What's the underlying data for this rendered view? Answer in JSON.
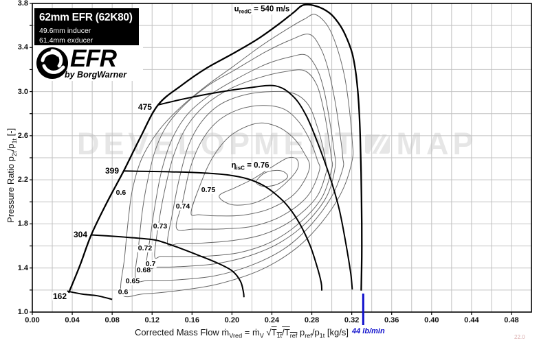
{
  "title_block": {
    "title": "62mm EFR  (62K80)",
    "line1": "49.6mm inducer",
    "line2": "61.4mm exducer"
  },
  "logo": {
    "brand": "EFR",
    "sub": "by BorgWarner"
  },
  "watermark": {
    "left": "DEVELOPMENT",
    "right": "MAP"
  },
  "corner_note": "22.0",
  "colors": {
    "grid": "#c2c2c2",
    "curve": "#000000",
    "contour": "#676767",
    "frame": "#000000",
    "marker": "#1111cc",
    "watermark": "#e6e6e6"
  },
  "axes": {
    "x": {
      "min": 0,
      "max": 0.5,
      "grid_step": 0.02,
      "tick_step": 0.04,
      "tick_labels": [
        "0.00",
        "0.04",
        "0.08",
        "0.12",
        "0.16",
        "0.20",
        "0.24",
        "0.28",
        "0.32",
        "0.36",
        "0.40",
        "0.44",
        "0.48"
      ],
      "title_parts": [
        {
          "m": "Corrected Mass Flow   "
        },
        {
          "m": "ṁ",
          "s": "Vred"
        },
        {
          "m": " = ṁ",
          "s": "V"
        },
        {
          "m": " √"
        },
        {
          "m": "T",
          "s": "1t",
          "o": 1
        },
        {
          "m": "/T",
          "s": "ref",
          "o": 1
        },
        {
          "m": " p",
          "s": "ref"
        },
        {
          "m": "/p",
          "s": "1t"
        },
        {
          "m": "   [kg/s]"
        }
      ]
    },
    "y": {
      "min": 1.0,
      "max": 3.8,
      "grid_step": 0.2,
      "ticks": [
        1.0,
        1.4,
        1.8,
        2.2,
        2.6,
        3.0,
        3.4,
        3.8
      ],
      "tick_labels": [
        "1.0",
        "1.4",
        "1.8",
        "2.2",
        "2.6",
        "3.0",
        "3.4",
        "3.8"
      ],
      "title_parts": [
        {
          "m": "Pressure Ratio   "
        },
        {
          "m": "p",
          "s": "2t"
        },
        {
          "m": "/p",
          "s": "1t"
        },
        {
          "m": " [-]"
        }
      ]
    }
  },
  "annotations": {
    "speed_note": {
      "parts": [
        {
          "m": "u",
          "s": "redC"
        },
        {
          "m": " = 540 m/s"
        }
      ],
      "f": 0.23,
      "pr": 3.737
    },
    "eta_note": {
      "parts": [
        {
          "m": "η",
          "s": "isC"
        },
        {
          "m": " = 0.76"
        }
      ],
      "f": 0.2183,
      "pr": 2.319
    },
    "flow_marker": {
      "text": "44 lb/min",
      "f": 0.3315,
      "pr_top": 1.168
    }
  },
  "chart_data": {
    "type": "line",
    "xlabel": "Corrected Mass Flow [kg/s]",
    "ylabel": "Pressure Ratio p2t/p1t [-]",
    "xlim": [
      0,
      0.5
    ],
    "ylim": [
      1.0,
      3.8
    ],
    "envelope": {
      "name": "540 m/s envelope",
      "points": [
        [
          0.0365,
          1.175
        ],
        [
          0.048,
          1.43
        ],
        [
          0.059,
          1.7
        ],
        [
          0.0745,
          1.99
        ],
        [
          0.0915,
          2.28
        ],
        [
          0.108,
          2.58
        ],
        [
          0.126,
          2.88
        ],
        [
          0.15,
          3.06
        ],
        [
          0.174,
          3.21
        ],
        [
          0.2,
          3.34
        ],
        [
          0.2255,
          3.475
        ],
        [
          0.248,
          3.62
        ],
        [
          0.262,
          3.72
        ],
        [
          0.2715,
          3.785
        ],
        [
          0.2845,
          3.775
        ],
        [
          0.2975,
          3.715
        ],
        [
          0.3065,
          3.625
        ],
        [
          0.3135,
          3.515
        ],
        [
          0.3205,
          3.345
        ],
        [
          0.3245,
          3.14
        ],
        [
          0.327,
          2.89
        ],
        [
          0.3285,
          2.58
        ],
        [
          0.3295,
          2.2
        ],
        [
          0.33,
          1.8
        ],
        [
          0.33,
          1.5
        ],
        [
          0.3295,
          1.195
        ]
      ]
    },
    "speed_lines": [
      {
        "label": "162",
        "points": [
          [
            0.035,
            1.19
          ],
          [
            0.05,
            1.163
          ],
          [
            0.065,
            1.148
          ],
          [
            0.08,
            1.115
          ]
        ]
      },
      {
        "label": "304",
        "points": [
          [
            0.059,
            1.7
          ],
          [
            0.085,
            1.685
          ],
          [
            0.11,
            1.667
          ],
          [
            0.125,
            1.65
          ],
          [
            0.145,
            1.59
          ],
          [
            0.165,
            1.52
          ],
          [
            0.185,
            1.447
          ],
          [
            0.2,
            1.375
          ],
          [
            0.2085,
            1.28
          ],
          [
            0.2115,
            1.18
          ],
          [
            0.212,
            1.135
          ]
        ]
      },
      {
        "label": "399",
        "points": [
          [
            0.0915,
            2.28
          ],
          [
            0.115,
            2.276
          ],
          [
            0.14,
            2.272
          ],
          [
            0.172,
            2.262
          ],
          [
            0.195,
            2.245
          ],
          [
            0.215,
            2.21
          ],
          [
            0.231,
            2.151
          ],
          [
            0.245,
            2.06
          ],
          [
            0.2565,
            1.955
          ],
          [
            0.268,
            1.8
          ],
          [
            0.278,
            1.61
          ],
          [
            0.285,
            1.42
          ],
          [
            0.2893,
            1.27
          ],
          [
            0.29,
            1.195
          ]
        ]
      },
      {
        "label": "475",
        "points": [
          [
            0.126,
            2.88
          ],
          [
            0.155,
            2.94
          ],
          [
            0.185,
            2.992
          ],
          [
            0.215,
            3.032
          ],
          [
            0.2435,
            3.052
          ],
          [
            0.2615,
            2.955
          ],
          [
            0.2745,
            2.78
          ],
          [
            0.2865,
            2.52
          ],
          [
            0.2985,
            2.215
          ],
          [
            0.3075,
            1.93
          ],
          [
            0.3145,
            1.6
          ],
          [
            0.319,
            1.35
          ],
          [
            0.3205,
            1.205
          ]
        ]
      }
    ],
    "efficiency_contours": [
      {
        "value": 0.6,
        "points": [
          [
            0.0895,
            1.165
          ],
          [
            0.0925,
            1.5
          ],
          [
            0.0963,
            1.85
          ],
          [
            0.1005,
            2.12
          ],
          [
            0.11,
            2.4
          ],
          [
            0.127,
            2.65
          ],
          [
            0.1475,
            2.85
          ],
          [
            0.174,
            3.05
          ],
          [
            0.2,
            3.22
          ],
          [
            0.23,
            3.42
          ],
          [
            0.2575,
            3.58
          ],
          [
            0.273,
            3.66
          ],
          [
            0.2835,
            3.7
          ],
          [
            0.2955,
            3.6
          ],
          [
            0.3045,
            3.42
          ],
          [
            0.3125,
            3.15
          ],
          [
            0.3175,
            2.85
          ],
          [
            0.3205,
            2.55
          ],
          [
            0.3205,
            2.38
          ],
          [
            0.3105,
            2.1
          ],
          [
            0.2905,
            1.82
          ],
          [
            0.2645,
            1.58
          ],
          [
            0.2295,
            1.385
          ],
          [
            0.1865,
            1.255
          ],
          [
            0.146,
            1.195
          ],
          [
            0.1115,
            1.165
          ]
        ],
        "closed": true
      },
      {
        "value": 0.65,
        "points": [
          [
            0.1035,
            1.3
          ],
          [
            0.1065,
            1.6
          ],
          [
            0.11,
            1.9
          ],
          [
            0.1145,
            2.15
          ],
          [
            0.1225,
            2.45
          ],
          [
            0.134,
            2.68
          ],
          [
            0.1525,
            2.88
          ],
          [
            0.177,
            3.06
          ],
          [
            0.2035,
            3.2
          ],
          [
            0.2335,
            3.36
          ],
          [
            0.259,
            3.47
          ],
          [
            0.2775,
            3.52
          ],
          [
            0.2885,
            3.4
          ],
          [
            0.2965,
            3.2
          ],
          [
            0.3035,
            2.9
          ],
          [
            0.3085,
            2.6
          ],
          [
            0.311,
            2.4
          ],
          [
            0.311,
            2.3
          ],
          [
            0.3,
            2.05
          ],
          [
            0.279,
            1.79
          ],
          [
            0.2525,
            1.575
          ],
          [
            0.2195,
            1.425
          ],
          [
            0.1825,
            1.328
          ],
          [
            0.1445,
            1.292
          ],
          [
            0.1175,
            1.289
          ]
        ],
        "closed": true
      },
      {
        "value": 0.68,
        "points": [
          [
            0.1145,
            1.41
          ],
          [
            0.1185,
            1.7
          ],
          [
            0.1235,
            2.0
          ],
          [
            0.13,
            2.3
          ],
          [
            0.1405,
            2.58
          ],
          [
            0.156,
            2.8
          ],
          [
            0.178,
            2.97
          ],
          [
            0.2055,
            3.12
          ],
          [
            0.2345,
            3.25
          ],
          [
            0.2585,
            3.315
          ],
          [
            0.2745,
            3.33
          ],
          [
            0.2855,
            3.2
          ],
          [
            0.2925,
            3.0
          ],
          [
            0.2985,
            2.7
          ],
          [
            0.3025,
            2.45
          ],
          [
            0.3035,
            2.32
          ],
          [
            0.2955,
            2.06
          ],
          [
            0.2755,
            1.82
          ],
          [
            0.249,
            1.635
          ],
          [
            0.2175,
            1.51
          ],
          [
            0.1825,
            1.437
          ],
          [
            0.1475,
            1.412
          ],
          [
            0.1255,
            1.408
          ]
        ],
        "closed": true
      },
      {
        "value": 0.7,
        "points": [
          [
            0.1225,
            1.51
          ],
          [
            0.1265,
            1.8
          ],
          [
            0.1325,
            2.1
          ],
          [
            0.1415,
            2.42
          ],
          [
            0.1545,
            2.68
          ],
          [
            0.1735,
            2.88
          ],
          [
            0.199,
            3.03
          ],
          [
            0.2285,
            3.13
          ],
          [
            0.2525,
            3.18
          ],
          [
            0.2725,
            3.19
          ],
          [
            0.2845,
            3.07
          ],
          [
            0.2915,
            2.85
          ],
          [
            0.2965,
            2.6
          ],
          [
            0.2995,
            2.4
          ],
          [
            0.3,
            2.3
          ],
          [
            0.2895,
            2.03
          ],
          [
            0.2665,
            1.8
          ],
          [
            0.239,
            1.635
          ],
          [
            0.2075,
            1.54
          ],
          [
            0.174,
            1.507
          ],
          [
            0.1445,
            1.503
          ],
          [
            0.129,
            1.505
          ]
        ],
        "closed": true
      },
      {
        "value": 0.72,
        "points": [
          [
            0.1355,
            1.62
          ],
          [
            0.1405,
            1.9
          ],
          [
            0.147,
            2.2
          ],
          [
            0.156,
            2.5
          ],
          [
            0.169,
            2.72
          ],
          [
            0.1875,
            2.88
          ],
          [
            0.2125,
            2.97
          ],
          [
            0.2385,
            3.0
          ],
          [
            0.2615,
            2.985
          ],
          [
            0.2765,
            2.88
          ],
          [
            0.2855,
            2.68
          ],
          [
            0.2915,
            2.48
          ],
          [
            0.2945,
            2.33
          ],
          [
            0.2945,
            2.27
          ],
          [
            0.2845,
            2.04
          ],
          [
            0.2605,
            1.835
          ],
          [
            0.2315,
            1.705
          ],
          [
            0.1995,
            1.648
          ],
          [
            0.1675,
            1.625
          ],
          [
            0.1455,
            1.62
          ]
        ],
        "closed": true
      },
      {
        "value": 0.73,
        "points": [
          [
            0.1445,
            1.76
          ],
          [
            0.1505,
            2.0
          ],
          [
            0.158,
            2.3
          ],
          [
            0.1695,
            2.55
          ],
          [
            0.1855,
            2.73
          ],
          [
            0.2075,
            2.84
          ],
          [
            0.2315,
            2.875
          ],
          [
            0.2525,
            2.84
          ],
          [
            0.2675,
            2.72
          ],
          [
            0.2785,
            2.55
          ],
          [
            0.2855,
            2.38
          ],
          [
            0.2875,
            2.28
          ],
          [
            0.2755,
            2.05
          ],
          [
            0.2505,
            1.875
          ],
          [
            0.2215,
            1.78
          ],
          [
            0.1915,
            1.755
          ],
          [
            0.1625,
            1.753
          ]
        ],
        "closed": true
      },
      {
        "value": 0.74,
        "points": [
          [
            0.159,
            1.9
          ],
          [
            0.168,
            2.15
          ],
          [
            0.1805,
            2.4
          ],
          [
            0.1985,
            2.6
          ],
          [
            0.2235,
            2.71
          ],
          [
            0.2435,
            2.69
          ],
          [
            0.2605,
            2.59
          ],
          [
            0.2725,
            2.44
          ],
          [
            0.2775,
            2.3
          ],
          [
            0.2635,
            2.08
          ],
          [
            0.2385,
            1.94
          ],
          [
            0.2115,
            1.88
          ],
          [
            0.1855,
            1.873
          ],
          [
            0.1675,
            1.883
          ]
        ],
        "closed": true
      },
      {
        "value": 0.75,
        "points": [
          [
            0.1875,
            2.06
          ],
          [
            0.2035,
            2.13
          ],
          [
            0.2215,
            2.21
          ],
          [
            0.2405,
            2.32
          ],
          [
            0.2565,
            2.4
          ],
          [
            0.2655,
            2.38
          ],
          [
            0.2645,
            2.28
          ],
          [
            0.2475,
            2.12
          ],
          [
            0.2255,
            2.0
          ],
          [
            0.2055,
            1.97
          ],
          [
            0.1935,
            1.995
          ]
        ],
        "closed": true
      },
      {
        "value": 0.76,
        "points": [
          [
            0.2245,
            2.19
          ],
          [
            0.2325,
            2.26
          ],
          [
            0.2435,
            2.285
          ],
          [
            0.2525,
            2.27
          ],
          [
            0.2555,
            2.22
          ],
          [
            0.2455,
            2.16
          ],
          [
            0.2335,
            2.14
          ],
          [
            0.2265,
            2.155
          ]
        ],
        "closed": true
      }
    ],
    "speed_labels": [
      {
        "text": "475",
        "f": 0.1129,
        "pr": 2.86
      },
      {
        "text": "399",
        "f": 0.0799,
        "pr": 2.2817
      },
      {
        "text": "304",
        "f": 0.0482,
        "pr": 1.7031
      },
      {
        "text": "162",
        "f": 0.02755,
        "pr": 1.1431
      }
    ],
    "contour_labels": [
      {
        "text": "0.6",
        "f": 0.08884,
        "pr": 2.0826
      },
      {
        "text": "0.75",
        "f": 0.17631,
        "pr": 2.1075
      },
      {
        "text": "0.74",
        "f": 0.15083,
        "pr": 1.9582
      },
      {
        "text": "0.73",
        "f": 0.1281,
        "pr": 1.7777
      },
      {
        "text": "0.72",
        "f": 0.11295,
        "pr": 1.5786
      },
      {
        "text": "0.7",
        "f": 0.11846,
        "pr": 1.4355
      },
      {
        "text": "0.68",
        "f": 0.11157,
        "pr": 1.3795
      },
      {
        "text": "0.65",
        "f": 0.10055,
        "pr": 1.28
      },
      {
        "text": "0.6",
        "f": 0.09091,
        "pr": 1.1804
      }
    ]
  }
}
